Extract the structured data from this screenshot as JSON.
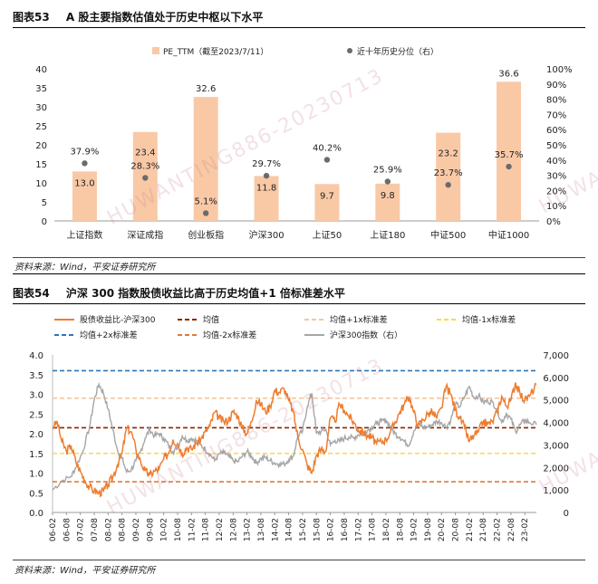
{
  "panel1": {
    "figure_no": "图表53",
    "title": "A 股主要指数估值处于历史中枢以下水平",
    "source": "资料来源：Wind，平安证券研究所"
  },
  "panel2": {
    "figure_no": "图表54",
    "title": "沪深 300 指数股债收益比高于历史均值+1 倍标准差水平",
    "source": "资料来源：Wind，平安证券研究所"
  },
  "watermark": {
    "text1": "HUWANTING886-20230713",
    "text2": "HUWANTI"
  },
  "colors": {
    "bar": "#f9c9a6",
    "dot": "#6b6b6b",
    "equity_bond": "#ed7d31",
    "mean": "#8b2500",
    "plus1sd": "#f4c7a0",
    "minus1sd": "#ffd83f",
    "plus2sd": "#2e75b6",
    "minus2sd": "#e07b39",
    "hs300": "#a6a6a6"
  },
  "chart_data": [
    {
      "type": "bar",
      "categories": [
        "上证指数",
        "深证成指",
        "创业板指",
        "沪深300",
        "上证50",
        "上证180",
        "中证500",
        "中证1000"
      ],
      "series": [
        {
          "name": "PE_TTM（截至2023/7/11）",
          "kind": "bar",
          "axis": "left",
          "values": [
            13.0,
            23.4,
            32.6,
            11.8,
            9.7,
            9.8,
            23.2,
            36.6
          ],
          "labels": [
            "13.0",
            "23.4",
            "32.6",
            "11.8",
            "9.7",
            "9.8",
            "23.2",
            "36.6"
          ]
        },
        {
          "name": "近十年历史分位（右）",
          "kind": "dot",
          "axis": "right",
          "values": [
            37.9,
            28.3,
            5.1,
            29.7,
            40.2,
            25.9,
            23.7,
            35.7
          ],
          "labels": [
            "37.9%",
            "28.3%",
            "5.1%",
            "29.7%",
            "40.2%",
            "25.9%",
            "23.7%",
            "35.7%"
          ]
        }
      ],
      "ylim": [
        0,
        40
      ],
      "yticks": [
        "0",
        "5",
        "10",
        "15",
        "20",
        "25",
        "30",
        "35",
        "40"
      ],
      "y2lim": [
        0,
        100
      ],
      "y2ticks": [
        "0%",
        "10%",
        "20%",
        "30%",
        "40%",
        "50%",
        "60%",
        "70%",
        "80%",
        "90%",
        "100%"
      ],
      "legend_position": "top"
    },
    {
      "type": "line",
      "x_range": [
        "2006-02",
        "2023-07"
      ],
      "xticks": [
        "06-02",
        "06-08",
        "07-02",
        "07-08",
        "08-02",
        "08-08",
        "09-02",
        "09-08",
        "10-02",
        "10-08",
        "11-02",
        "11-08",
        "12-02",
        "12-08",
        "13-02",
        "13-08",
        "14-02",
        "14-08",
        "15-02",
        "15-08",
        "16-02",
        "16-08",
        "17-02",
        "17-08",
        "18-02",
        "18-08",
        "19-02",
        "19-08",
        "20-02",
        "20-08",
        "21-02",
        "21-08",
        "22-02",
        "22-08",
        "23-02"
      ],
      "ylim": [
        0,
        4.0
      ],
      "yticks": [
        "0.0",
        "0.5",
        "1.0",
        "1.5",
        "2.0",
        "2.5",
        "3.0",
        "3.5",
        "4.0"
      ],
      "y2lim": [
        0,
        7000
      ],
      "y2ticks": [
        "0",
        "1,000",
        "2,000",
        "3,000",
        "4,000",
        "5,000",
        "6,000",
        "7,000"
      ],
      "hlines": [
        {
          "name": "均值",
          "value": 2.15,
          "style": "dashed"
        },
        {
          "name": "均值+1x标准差",
          "value": 2.9,
          "style": "dashed"
        },
        {
          "name": "均值-1x标准差",
          "value": 1.5,
          "style": "dashed"
        },
        {
          "name": "均值+2x标准差",
          "value": 3.6,
          "style": "dashed"
        },
        {
          "name": "均值-2x标准差",
          "value": 0.78,
          "style": "dashed"
        }
      ],
      "series": [
        {
          "name": "股债收益比-沪深300",
          "axis": "left",
          "points": [
            [
              "2006-02",
              2.15
            ],
            [
              "2006-04",
              2.3
            ],
            [
              "2006-06",
              1.8
            ],
            [
              "2006-08",
              1.55
            ],
            [
              "2006-10",
              1.7
            ],
            [
              "2006-12",
              1.3
            ],
            [
              "2007-02",
              1.05
            ],
            [
              "2007-04",
              0.8
            ],
            [
              "2007-06",
              0.65
            ],
            [
              "2007-08",
              0.55
            ],
            [
              "2007-10",
              0.5
            ],
            [
              "2007-12",
              0.55
            ],
            [
              "2008-02",
              0.7
            ],
            [
              "2008-04",
              0.9
            ],
            [
              "2008-06",
              1.2
            ],
            [
              "2008-08",
              1.5
            ],
            [
              "2008-10",
              2.15
            ],
            [
              "2008-12",
              2.05
            ],
            [
              "2009-02",
              1.6
            ],
            [
              "2009-04",
              1.3
            ],
            [
              "2009-06",
              1.05
            ],
            [
              "2009-08",
              0.95
            ],
            [
              "2009-10",
              1.05
            ],
            [
              "2009-12",
              1.1
            ],
            [
              "2010-02",
              1.35
            ],
            [
              "2010-04",
              1.5
            ],
            [
              "2010-06",
              1.85
            ],
            [
              "2010-08",
              1.75
            ],
            [
              "2010-10",
              1.5
            ],
            [
              "2010-12",
              1.65
            ],
            [
              "2011-02",
              1.6
            ],
            [
              "2011-04",
              1.75
            ],
            [
              "2011-06",
              1.85
            ],
            [
              "2011-08",
              2.05
            ],
            [
              "2011-10",
              2.2
            ],
            [
              "2011-12",
              2.55
            ],
            [
              "2012-02",
              2.4
            ],
            [
              "2012-04",
              2.3
            ],
            [
              "2012-06",
              2.35
            ],
            [
              "2012-08",
              2.55
            ],
            [
              "2012-10",
              2.45
            ],
            [
              "2012-12",
              2.15
            ],
            [
              "2013-02",
              2.0
            ],
            [
              "2013-04",
              2.3
            ],
            [
              "2013-06",
              2.85
            ],
            [
              "2013-08",
              2.75
            ],
            [
              "2013-10",
              2.55
            ],
            [
              "2013-12",
              2.7
            ],
            [
              "2014-02",
              3.1
            ],
            [
              "2014-04",
              3.05
            ],
            [
              "2014-06",
              3.15
            ],
            [
              "2014-08",
              2.85
            ],
            [
              "2014-10",
              2.55
            ],
            [
              "2014-12",
              1.9
            ],
            [
              "2015-02",
              1.6
            ],
            [
              "2015-04",
              1.2
            ],
            [
              "2015-06",
              1.0
            ],
            [
              "2015-08",
              1.45
            ],
            [
              "2015-10",
              1.6
            ],
            [
              "2015-12",
              1.55
            ],
            [
              "2016-02",
              2.4
            ],
            [
              "2016-04",
              2.3
            ],
            [
              "2016-06",
              2.75
            ],
            [
              "2016-08",
              2.6
            ],
            [
              "2016-10",
              2.45
            ],
            [
              "2016-12",
              2.3
            ],
            [
              "2017-02",
              2.1
            ],
            [
              "2017-04",
              2.05
            ],
            [
              "2017-06",
              1.95
            ],
            [
              "2017-08",
              1.9
            ],
            [
              "2017-10",
              1.75
            ],
            [
              "2017-12",
              1.8
            ],
            [
              "2018-02",
              1.85
            ],
            [
              "2018-04",
              2.05
            ],
            [
              "2018-06",
              2.3
            ],
            [
              "2018-08",
              2.55
            ],
            [
              "2018-10",
              2.75
            ],
            [
              "2018-12",
              2.95
            ],
            [
              "2019-02",
              2.55
            ],
            [
              "2019-04",
              2.2
            ],
            [
              "2019-06",
              2.35
            ],
            [
              "2019-08",
              2.5
            ],
            [
              "2019-10",
              2.55
            ],
            [
              "2019-12",
              2.4
            ],
            [
              "2020-02",
              2.65
            ],
            [
              "2020-04",
              3.2
            ],
            [
              "2020-06",
              3.0
            ],
            [
              "2020-08",
              2.6
            ],
            [
              "2020-10",
              2.4
            ],
            [
              "2020-12",
              2.15
            ],
            [
              "2021-02",
              1.8
            ],
            [
              "2021-04",
              1.95
            ],
            [
              "2021-06",
              2.05
            ],
            [
              "2021-08",
              2.3
            ],
            [
              "2021-10",
              2.25
            ],
            [
              "2021-12",
              2.3
            ],
            [
              "2022-02",
              2.55
            ],
            [
              "2022-04",
              2.95
            ],
            [
              "2022-06",
              2.7
            ],
            [
              "2022-08",
              2.85
            ],
            [
              "2022-10",
              3.3
            ],
            [
              "2022-12",
              3.0
            ],
            [
              "2023-02",
              2.85
            ],
            [
              "2023-04",
              2.95
            ],
            [
              "2023-07",
              3.25
            ]
          ]
        },
        {
          "name": "沪深300指数（右）",
          "axis": "right",
          "points": [
            [
              "2006-02",
              1000
            ],
            [
              "2006-06",
              1400
            ],
            [
              "2006-10",
              1600
            ],
            [
              "2006-12",
              2000
            ],
            [
              "2007-03",
              2700
            ],
            [
              "2007-06",
              3800
            ],
            [
              "2007-08",
              5000
            ],
            [
              "2007-10",
              5700
            ],
            [
              "2007-12",
              5300
            ],
            [
              "2008-02",
              4600
            ],
            [
              "2008-04",
              3700
            ],
            [
              "2008-06",
              2800
            ],
            [
              "2008-08",
              2400
            ],
            [
              "2008-10",
              1800
            ],
            [
              "2008-12",
              1900
            ],
            [
              "2009-02",
              2300
            ],
            [
              "2009-04",
              2700
            ],
            [
              "2009-06",
              3300
            ],
            [
              "2009-08",
              3700
            ],
            [
              "2009-10",
              3400
            ],
            [
              "2009-12",
              3500
            ],
            [
              "2010-02",
              3300
            ],
            [
              "2010-04",
              3000
            ],
            [
              "2010-06",
              2700
            ],
            [
              "2010-08",
              2900
            ],
            [
              "2010-10",
              3400
            ],
            [
              "2010-12",
              3200
            ],
            [
              "2011-02",
              3300
            ],
            [
              "2011-04",
              3200
            ],
            [
              "2011-06",
              3000
            ],
            [
              "2011-08",
              2800
            ],
            [
              "2011-10",
              2600
            ],
            [
              "2011-12",
              2300
            ],
            [
              "2012-02",
              2600
            ],
            [
              "2012-04",
              2650
            ],
            [
              "2012-06",
              2500
            ],
            [
              "2012-08",
              2300
            ],
            [
              "2012-10",
              2250
            ],
            [
              "2012-12",
              2500
            ],
            [
              "2013-02",
              2700
            ],
            [
              "2013-04",
              2500
            ],
            [
              "2013-06",
              2200
            ],
            [
              "2013-08",
              2400
            ],
            [
              "2013-10",
              2450
            ],
            [
              "2013-12",
              2300
            ],
            [
              "2014-02",
              2200
            ],
            [
              "2014-04",
              2150
            ],
            [
              "2014-06",
              2150
            ],
            [
              "2014-08",
              2350
            ],
            [
              "2014-10",
              2500
            ],
            [
              "2014-12",
              3400
            ],
            [
              "2015-02",
              3600
            ],
            [
              "2015-04",
              4700
            ],
            [
              "2015-06",
              5300
            ],
            [
              "2015-08",
              3500
            ],
            [
              "2015-10",
              3600
            ],
            [
              "2015-12",
              3700
            ],
            [
              "2016-02",
              3000
            ],
            [
              "2016-04",
              3200
            ],
            [
              "2016-06",
              3150
            ],
            [
              "2016-08",
              3300
            ],
            [
              "2016-10",
              3350
            ],
            [
              "2016-12",
              3300
            ],
            [
              "2017-02",
              3450
            ],
            [
              "2017-04",
              3500
            ],
            [
              "2017-06",
              3650
            ],
            [
              "2017-08",
              3800
            ],
            [
              "2017-10",
              3950
            ],
            [
              "2017-12",
              4050
            ],
            [
              "2018-02",
              4100
            ],
            [
              "2018-04",
              3800
            ],
            [
              "2018-06",
              3500
            ],
            [
              "2018-08",
              3350
            ],
            [
              "2018-10",
              3150
            ],
            [
              "2018-12",
              3000
            ],
            [
              "2019-02",
              3600
            ],
            [
              "2019-04",
              3950
            ],
            [
              "2019-06",
              3800
            ],
            [
              "2019-08",
              3800
            ],
            [
              "2019-10",
              3900
            ],
            [
              "2019-12",
              4050
            ],
            [
              "2020-02",
              4000
            ],
            [
              "2020-04",
              3800
            ],
            [
              "2020-06",
              4100
            ],
            [
              "2020-08",
              4800
            ],
            [
              "2020-10",
              4700
            ],
            [
              "2020-12",
              5150
            ],
            [
              "2021-02",
              5600
            ],
            [
              "2021-04",
              5100
            ],
            [
              "2021-06",
              5200
            ],
            [
              "2021-08",
              4900
            ],
            [
              "2021-10",
              4950
            ],
            [
              "2021-12",
              4900
            ],
            [
              "2022-02",
              4600
            ],
            [
              "2022-04",
              4000
            ],
            [
              "2022-06",
              4400
            ],
            [
              "2022-08",
              4150
            ],
            [
              "2022-10",
              3600
            ],
            [
              "2022-12",
              3900
            ],
            [
              "2023-02",
              4100
            ],
            [
              "2023-04",
              4000
            ],
            [
              "2023-07",
              3900
            ]
          ]
        }
      ],
      "legend_position": "top"
    }
  ]
}
